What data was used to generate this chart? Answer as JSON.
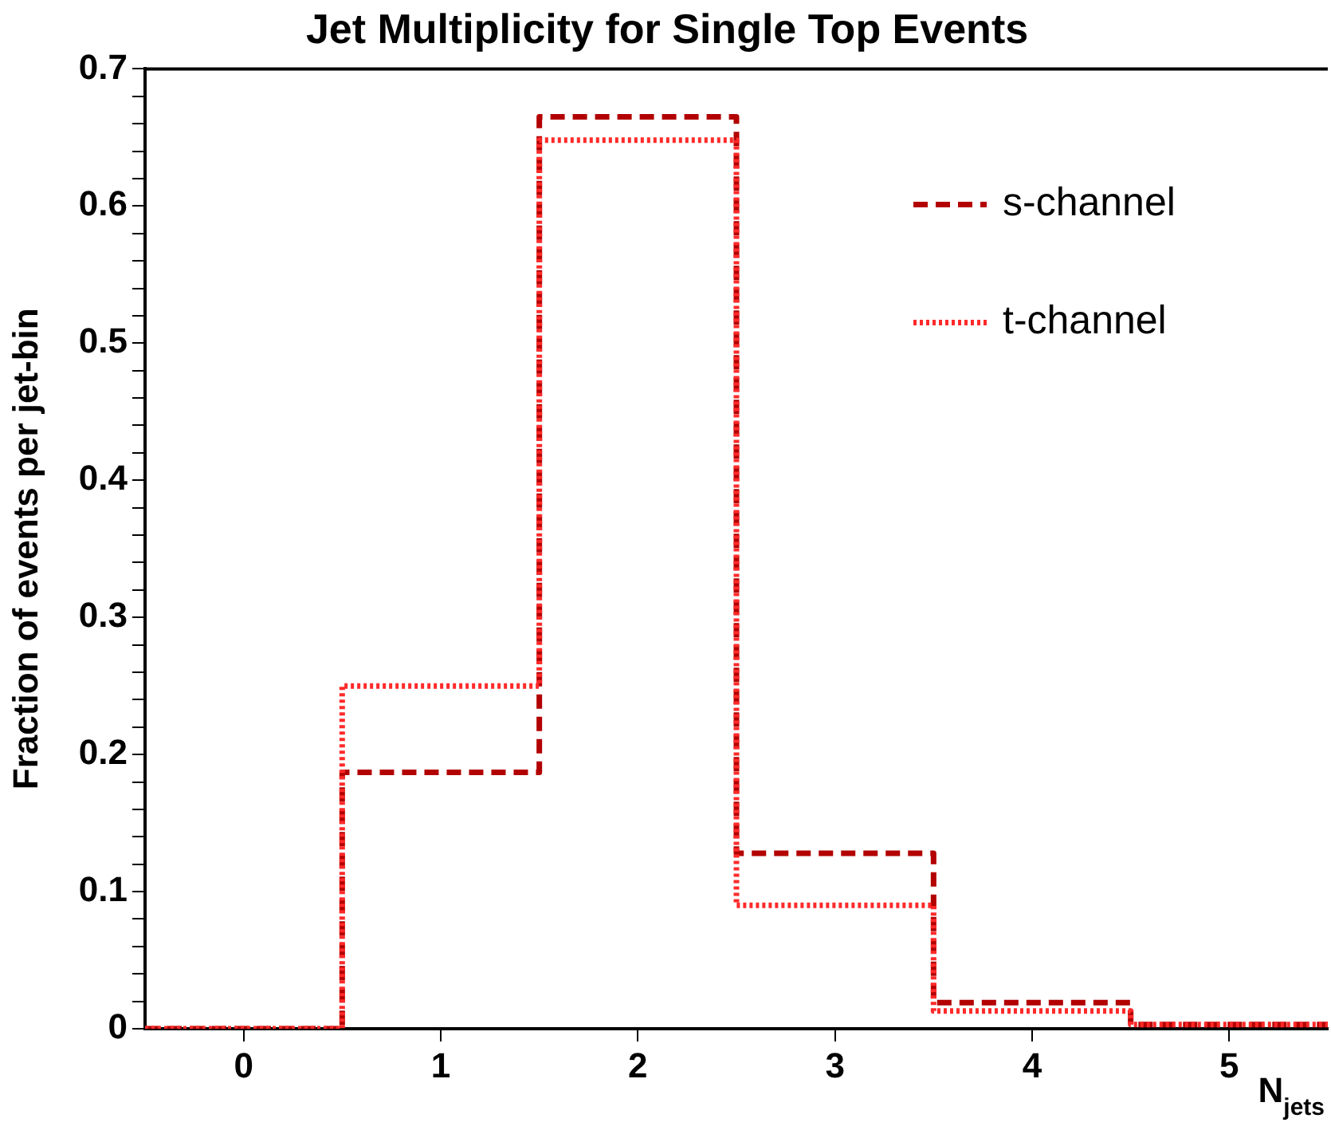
{
  "chart_data": {
    "type": "histogram",
    "title": "Jet Multiplicity for Single Top Events",
    "xlabel": "N$_{jets}$",
    "ylabel": "Fraction of events per jet-bin",
    "bins": [
      -0.5,
      0.5,
      1.5,
      2.5,
      3.5,
      4.5,
      5.5
    ],
    "series": [
      {
        "name": "s-channel",
        "color": "#b30000",
        "line_style": "dashed",
        "values": [
          0,
          0.187,
          0.665,
          0.128,
          0.019,
          0.003
        ]
      },
      {
        "name": "t-channel",
        "color": "#ff2a2a",
        "line_style": "dotted",
        "values": [
          0,
          0.25,
          0.648,
          0.09,
          0.013,
          0.003
        ]
      }
    ],
    "xlim": [
      -0.5,
      5.5
    ],
    "xticks": [
      0,
      1,
      2,
      3,
      4,
      5
    ],
    "ylim": [
      0,
      0.7
    ],
    "yticks": [
      0,
      {
        "value": 0.02,
        "label": null
      },
      {
        "value": 0.04,
        "label": null
      },
      {
        "value": 0.06,
        "label": null
      },
      {
        "value": 0.08,
        "label": null
      },
      0.1,
      {
        "value": 0.12,
        "label": null
      },
      {
        "value": 0.14,
        "label": null
      },
      {
        "value": 0.16,
        "label": null
      },
      {
        "value": 0.18,
        "label": null
      },
      0.2,
      {
        "value": 0.22,
        "label": null
      },
      {
        "value": 0.24,
        "label": null
      },
      {
        "value": 0.26,
        "label": null
      },
      {
        "value": 0.28,
        "label": null
      },
      0.3,
      {
        "value": 0.32,
        "label": null
      },
      {
        "value": 0.34,
        "label": null
      },
      {
        "value": 0.36,
        "label": null
      },
      {
        "value": 0.38,
        "label": null
      },
      0.4,
      {
        "value": 0.42,
        "label": null
      },
      {
        "value": 0.44,
        "label": null
      },
      {
        "value": 0.46,
        "label": null
      },
      {
        "value": 0.48,
        "label": null
      },
      0.5,
      {
        "value": 0.52,
        "label": null
      },
      {
        "value": 0.54,
        "label": null
      },
      {
        "value": 0.56,
        "label": null
      },
      {
        "value": 0.58,
        "label": null
      },
      0.6,
      {
        "value": 0.62,
        "label": null
      },
      {
        "value": 0.64,
        "label": null
      },
      {
        "value": 0.66,
        "label": null
      },
      {
        "value": 0.68,
        "label": null
      },
      0.7
    ],
    "legend": "top right",
    "marker": "none"
  }
}
